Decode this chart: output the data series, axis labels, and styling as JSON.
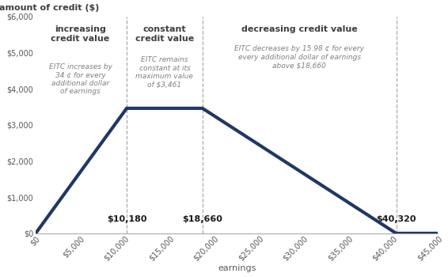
{
  "x_data": [
    0,
    10180,
    18660,
    40320,
    45000
  ],
  "y_data": [
    0,
    3461,
    3461,
    0,
    0
  ],
  "line_color": "#1F3864",
  "line_width": 3.0,
  "bg_color": "#ffffff",
  "ylabel_title": "amount of credit ($)",
  "xlabel": "earnings",
  "xlim": [
    0,
    45000
  ],
  "ylim": [
    0,
    6000
  ],
  "xticks": [
    0,
    5000,
    10000,
    15000,
    20000,
    25000,
    30000,
    35000,
    40000,
    45000
  ],
  "xtick_labels": [
    "$0",
    "$5,000",
    "$10,000",
    "$15,000",
    "$20,000",
    "$25,000",
    "$30,000",
    "$35,000",
    "$40,000",
    "$45,000"
  ],
  "yticks": [
    0,
    1000,
    2000,
    3000,
    4000,
    5000,
    6000
  ],
  "ytick_labels": [
    "$0",
    "$1,000",
    "$2,000",
    "$3,000",
    "$4,000",
    "$5,000",
    "$6,000"
  ],
  "vlines": [
    10180,
    18660,
    40320
  ],
  "vline_color": "#aaaaaa",
  "label_10180": "$10,180",
  "label_18660": "$18,660",
  "label_40320": "$40,320",
  "section1_title": "increasing\ncredit value",
  "section1_sub": "EITC increases by\n34 ¢ for every\nadditional dollar\nof earnings",
  "section2_title": "constant\ncredit value",
  "section2_sub": "EITC remains\nconstant at its\nmaximum value\nof $3,461",
  "section3_title": "decreasing credit value",
  "section3_sub": "EITC decreases by 15.98 ¢ for every\nevery additional dollar of earnings\nabove $18,660",
  "title_color": "#3f3f3f",
  "sub_color": "#808080",
  "label_color": "#1a1a1a",
  "tick_color": "#595959",
  "axis_color": "#aaaaaa"
}
